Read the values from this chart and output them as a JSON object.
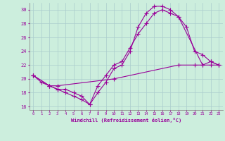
{
  "xlabel": "Windchill (Refroidissement éolien,°C)",
  "background_color": "#cceedd",
  "grid_color": "#aacccc",
  "line_color": "#990099",
  "line1": {
    "x": [
      0,
      1,
      2,
      3,
      4,
      5,
      6,
      7,
      8,
      9,
      10,
      11,
      12,
      13,
      14,
      15,
      16,
      17,
      18,
      19,
      20,
      21,
      22,
      23
    ],
    "y": [
      20.5,
      19.5,
      19.0,
      18.5,
      18.5,
      18.0,
      17.5,
      16.3,
      18.0,
      19.5,
      21.5,
      22.0,
      24.0,
      27.5,
      29.5,
      30.5,
      30.5,
      30.0,
      29.0,
      27.5,
      24.0,
      23.5,
      22.5,
      22.0
    ]
  },
  "line2": {
    "x": [
      0,
      2,
      3,
      4,
      5,
      6,
      7,
      8,
      9,
      10,
      11,
      12,
      13,
      14,
      15,
      16,
      17,
      18,
      21,
      22,
      23
    ],
    "y": [
      20.5,
      19.0,
      18.5,
      18.0,
      17.5,
      17.0,
      16.3,
      19.0,
      20.5,
      22.0,
      22.5,
      24.5,
      26.5,
      28.0,
      29.5,
      30.0,
      29.5,
      29.0,
      22.0,
      22.5,
      22.0
    ]
  },
  "line3": {
    "x": [
      0,
      2,
      3,
      10,
      18,
      20,
      21,
      22,
      23
    ],
    "y": [
      20.5,
      19.0,
      19.0,
      20.0,
      22.0,
      22.0,
      22.0,
      22.0,
      22.0
    ]
  },
  "xlim": [
    -0.5,
    23.5
  ],
  "ylim": [
    15.5,
    31.0
  ],
  "yticks": [
    16,
    18,
    20,
    22,
    24,
    26,
    28,
    30
  ],
  "xticks": [
    0,
    1,
    2,
    3,
    4,
    5,
    6,
    7,
    8,
    9,
    10,
    11,
    12,
    13,
    14,
    15,
    16,
    17,
    18,
    19,
    20,
    21,
    22,
    23
  ],
  "xtick_labels": [
    "0",
    "1",
    "2",
    "3",
    "4",
    "5",
    "6",
    "7",
    "8",
    "9",
    "10",
    "11",
    "12",
    "13",
    "14",
    "15",
    "16",
    "17",
    "18",
    "19",
    "20",
    "21",
    "22",
    "23"
  ]
}
